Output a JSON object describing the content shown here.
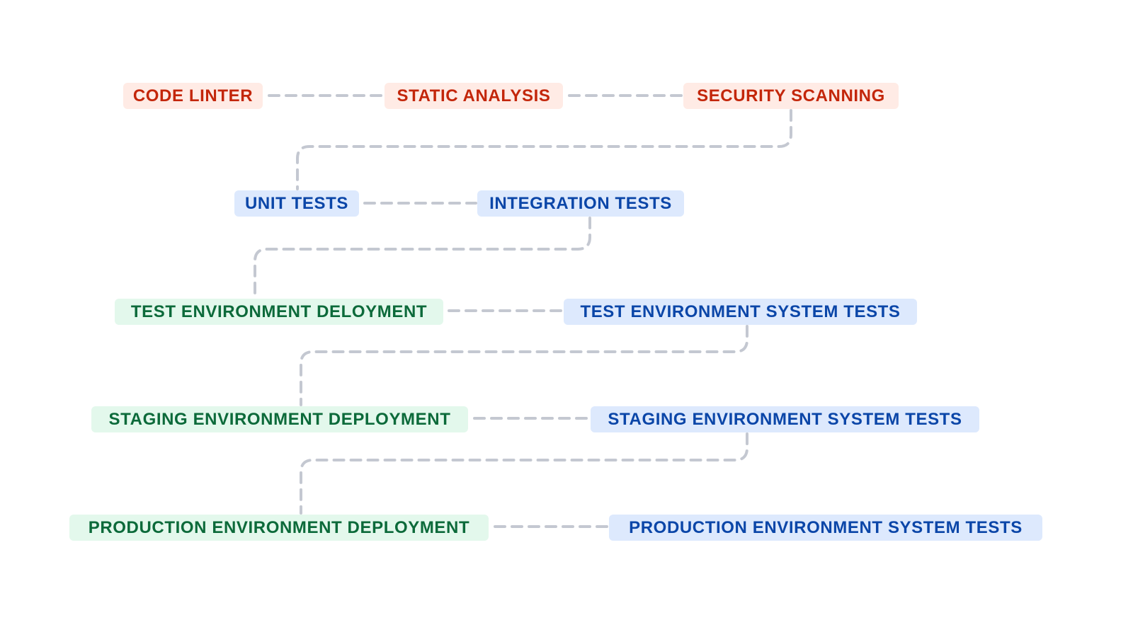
{
  "colors": {
    "lint_bg": "#ffebe5",
    "lint_text": "#c3260a",
    "test_bg": "#dde9fd",
    "test_text": "#0b46a8",
    "deploy_bg": "#e3f8ec",
    "deploy_text": "#0c6a3a",
    "connector": "#c4c8d1"
  },
  "nodes": {
    "code_linter": "CODE LINTER",
    "static_analysis": "STATIC ANALYSIS",
    "security_scanning": "SECURITY SCANNING",
    "unit_tests": "UNIT TESTS",
    "integration_tests": "INTEGRATION TESTS",
    "test_env_deployment": "TEST ENVIRONMENT DELOYMENT",
    "test_env_system_tests": "TEST ENVIRONMENT SYSTEM TESTS",
    "staging_env_deployment": "STAGING ENVIRONMENT DEPLOYMENT",
    "staging_env_system_tests": "STAGING ENVIRONMENT SYSTEM TESTS",
    "production_env_deployment": "PRODUCTION ENVIRONMENT DEPLOYMENT",
    "production_env_system_tests": "PRODUCTION ENVIRONMENT SYSTEM TESTS"
  }
}
